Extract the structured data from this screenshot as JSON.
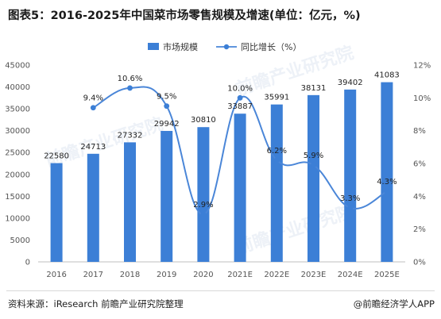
{
  "title": "图表5：2016-2025年中国菜市场零售规模及增速(单位：亿元，%)",
  "source": "资料来源：iResearch 前瞻产业研究院整理",
  "brand": "@前瞻经济学人APP",
  "watermark": "前瞻产业研究院",
  "colors": {
    "bar": "#3c7fd6",
    "line": "#4a86d8",
    "marker": "#3c7fd6"
  },
  "chart_data": {
    "type": "bar",
    "title": "图表5：2016-2025年中国菜市场零售规模及增速(单位：亿元，%)",
    "categories": [
      "2016",
      "2017",
      "2018",
      "2019",
      "2020",
      "2021E",
      "2022E",
      "2023E",
      "2024E",
      "2025E"
    ],
    "series": [
      {
        "name": "市场规模",
        "type": "bar",
        "axis": "left",
        "values": [
          22580,
          24713,
          27332,
          29942,
          30810,
          33887,
          35991,
          38131,
          39402,
          41083
        ],
        "labels": [
          "22580",
          "24713",
          "27332",
          "29942",
          "30810",
          "33887",
          "35991",
          "38131",
          "39402",
          "41083"
        ]
      },
      {
        "name": "同比增长（%）",
        "type": "line",
        "axis": "right",
        "values": [
          null,
          9.4,
          10.6,
          9.5,
          2.9,
          10.0,
          6.2,
          5.9,
          3.3,
          4.3
        ],
        "labels": [
          "",
          "9.4%",
          "10.6%",
          "9.5%",
          "2.9%",
          "10.0%",
          "6.2%",
          "5.9%",
          "3.3%",
          "4.3%"
        ]
      }
    ],
    "ylim": [
      0,
      45000
    ],
    "yticks": [
      "0",
      "5000",
      "10000",
      "15000",
      "20000",
      "25000",
      "30000",
      "35000",
      "40000",
      "45000"
    ],
    "ylim_right": [
      0,
      12
    ],
    "yticks_right": [
      "0%",
      "2%",
      "4%",
      "6%",
      "8%",
      "10%",
      "12%"
    ],
    "legend_position": "top",
    "grid": false
  }
}
